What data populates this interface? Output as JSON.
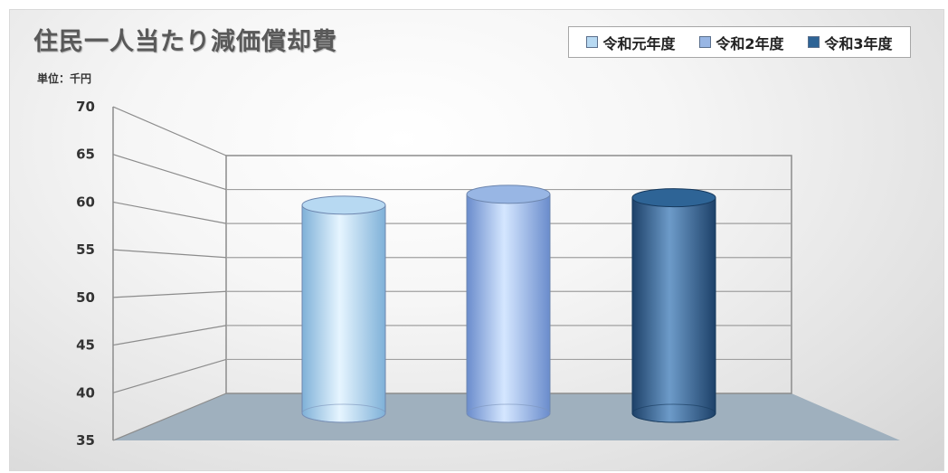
{
  "chart_data": {
    "type": "bar",
    "title": "住民一人当たり減価償却費",
    "unit_label": "単位：千円",
    "categories": [
      "令和元年度",
      "令和2年度",
      "令和3年度"
    ],
    "values": [
      62.7,
      64.3,
      63.8
    ],
    "ylim": [
      35,
      70
    ],
    "yticks": [
      "70",
      "65",
      "60",
      "55",
      "50",
      "45",
      "40",
      "35"
    ],
    "legend_position": "top-right",
    "grid": true,
    "series_colors": [
      "#b7d9f2",
      "#98b6e4",
      "#2e6496"
    ]
  }
}
